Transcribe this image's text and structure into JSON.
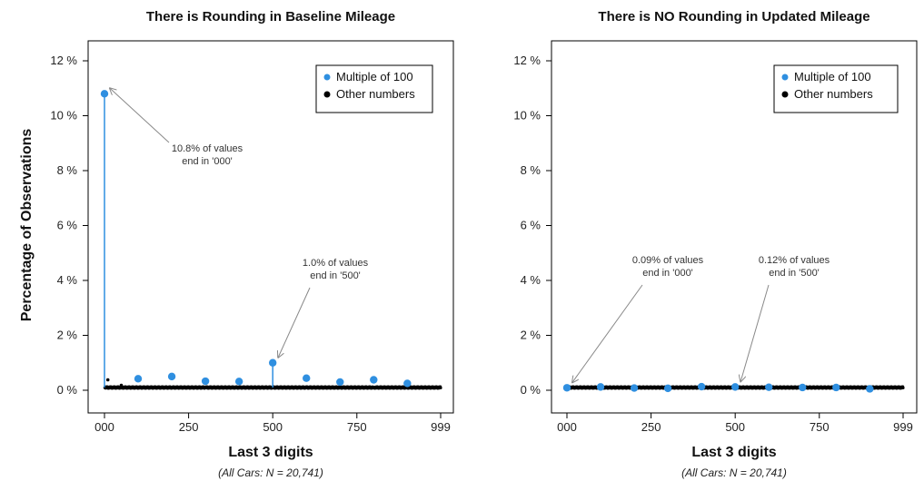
{
  "colors": {
    "multiple": "#2f8fe0",
    "other": "#000000",
    "arrow": "#888888"
  },
  "chart_data": [
    {
      "type": "scatter",
      "title": "There is Rounding in Baseline Mileage",
      "xlabel": "Last 3 digits",
      "ylabel": "Percentage of Observations",
      "note": "(All Cars: N = 20,741)",
      "xlim": [
        0,
        999
      ],
      "ylim": [
        0,
        12
      ],
      "x_ticks": [
        0,
        250,
        500,
        750,
        999
      ],
      "x_tick_labels": [
        "000",
        "250",
        "500",
        "750",
        "999"
      ],
      "y_ticks": [
        0,
        2,
        4,
        6,
        8,
        10,
        12
      ],
      "y_tick_labels": [
        "0 %",
        "2 %",
        "4 %",
        "6 %",
        "8 %",
        "10 %",
        "12 %"
      ],
      "legend": {
        "position": "top-right",
        "entries": [
          "Multiple of 100",
          "Other numbers"
        ]
      },
      "series": [
        {
          "name": "Multiple of 100",
          "x": [
            0,
            100,
            200,
            300,
            400,
            500,
            600,
            700,
            800,
            900
          ],
          "y": [
            10.8,
            0.42,
            0.5,
            0.33,
            0.32,
            1.0,
            0.44,
            0.3,
            0.38,
            0.25
          ]
        },
        {
          "name": "Other numbers",
          "baseline": 0.1,
          "x_range": [
            1,
            999
          ],
          "highlights": {
            "x": [
              10,
              50
            ],
            "y": [
              0.38,
              0.18
            ]
          }
        }
      ],
      "annotations": [
        {
          "lines": [
            "10.8% of values",
            "end in '000'"
          ],
          "x": 0,
          "y": 10.8
        },
        {
          "lines": [
            "1.0% of values",
            "end in '500'"
          ],
          "x": 500,
          "y": 1.0
        }
      ]
    },
    {
      "type": "scatter",
      "title": "There is NO Rounding in Updated Mileage",
      "xlabel": "Last 3 digits",
      "ylabel": "",
      "note": "(All Cars: N = 20,741)",
      "xlim": [
        0,
        999
      ],
      "ylim": [
        0,
        12
      ],
      "x_ticks": [
        0,
        250,
        500,
        750,
        999
      ],
      "x_tick_labels": [
        "000",
        "250",
        "500",
        "750",
        "999"
      ],
      "y_ticks": [
        0,
        2,
        4,
        6,
        8,
        10,
        12
      ],
      "y_tick_labels": [
        "0 %",
        "2 %",
        "4 %",
        "6 %",
        "8 %",
        "10 %",
        "12 %"
      ],
      "legend": {
        "position": "top-right",
        "entries": [
          "Multiple of 100",
          "Other numbers"
        ]
      },
      "series": [
        {
          "name": "Multiple of 100",
          "x": [
            0,
            100,
            200,
            300,
            400,
            500,
            600,
            700,
            800,
            900
          ],
          "y": [
            0.09,
            0.12,
            0.08,
            0.07,
            0.13,
            0.12,
            0.11,
            0.1,
            0.1,
            0.05
          ]
        },
        {
          "name": "Other numbers",
          "baseline": 0.1,
          "x_range": [
            1,
            999
          ],
          "highlights": {
            "x": [],
            "y": []
          }
        }
      ],
      "annotations": [
        {
          "lines": [
            "0.09% of values",
            "end in '000'"
          ],
          "x": 0,
          "y": 0.09
        },
        {
          "lines": [
            "0.12% of values",
            "end in '500'"
          ],
          "x": 500,
          "y": 0.12
        }
      ]
    }
  ]
}
